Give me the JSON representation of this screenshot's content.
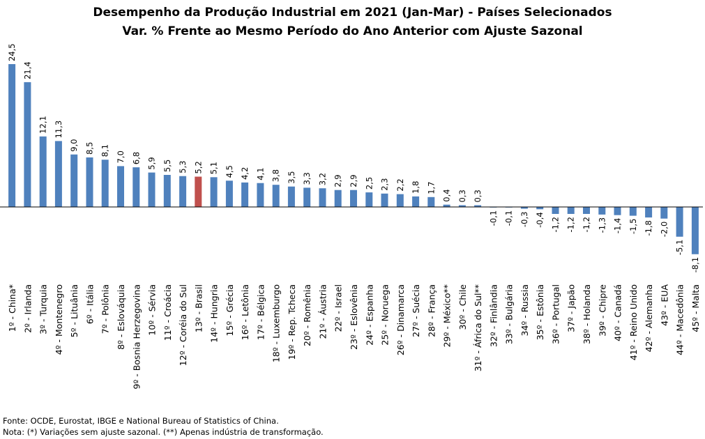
{
  "chart_data": {
    "type": "bar",
    "title": "Desempenho da Produção Industrial em 2021 (Jan-Mar) - Países Selecionados",
    "subtitle": "Var. % Frente ao Mesmo Período do Ano Anterior com Ajuste Sazonal",
    "xlabel": "",
    "ylabel": "",
    "ylim": [
      -8.1,
      24.5
    ],
    "grid": false,
    "legend": "none",
    "colors": {
      "default": "#4F81BD",
      "highlight": "#C0504D"
    },
    "highlight_category": "13º - Brasil",
    "categories": [
      "1º - China*",
      "2º - Irlanda",
      "3º - Turquia",
      "4º - Montenegro",
      "5º - Lituânia",
      "6º - Itália",
      "7º - Polônia",
      "8º - Eslováquia",
      "9º - Bosnia Herzegovina",
      "10º - Sérvia",
      "11º - Croácia",
      "12º - Coréia do Sul",
      "13º - Brasil",
      "14º - Hungria",
      "15º - Grécia",
      "16º - Letônia",
      "17º - Bélgica",
      "18º - Luxemburgo",
      "19º - Rep. Tcheca",
      "20º - Romênia",
      "21º - Áustria",
      "22º - Israel",
      "23º - Eslovênia",
      "24º - Espanha",
      "25º - Noruega",
      "26º - Dinamarca",
      "27º - Suécia",
      "28º - França",
      "29º - México**",
      "30º - Chile",
      "31º - África do Sul**",
      "32º - Finlândia",
      "33º - Bulgária",
      "34º - Russia",
      "35º - Estônia",
      "36º - Portugal",
      "37º - Japão",
      "38º - Holanda",
      "39º - Chipre",
      "40º - Canadá",
      "41º - Reino Unido",
      "42º - Alemanha",
      "43º - EUA",
      "44º - Macedônia",
      "45º - Malta"
    ],
    "values": [
      24.5,
      21.4,
      12.1,
      11.3,
      9.0,
      8.5,
      8.1,
      7.0,
      6.8,
      5.9,
      5.5,
      5.3,
      5.2,
      5.1,
      4.5,
      4.2,
      4.1,
      3.8,
      3.5,
      3.3,
      3.2,
      2.9,
      2.9,
      2.5,
      2.3,
      2.2,
      1.8,
      1.7,
      0.4,
      0.3,
      0.3,
      -0.1,
      -0.1,
      -0.3,
      -0.4,
      -1.2,
      -1.2,
      -1.2,
      -1.3,
      -1.4,
      -1.5,
      -1.8,
      -2.0,
      -5.1,
      -8.1
    ],
    "value_labels": [
      "24,5",
      "21,4",
      "12,1",
      "11,3",
      "9,0",
      "8,5",
      "8,1",
      "7,0",
      "6,8",
      "5,9",
      "5,5",
      "5,3",
      "5,2",
      "5,1",
      "4,5",
      "4,2",
      "4,1",
      "3,8",
      "3,5",
      "3,3",
      "3,2",
      "2,9",
      "2,9",
      "2,5",
      "2,3",
      "2,2",
      "1,8",
      "1,7",
      "0,4",
      "0,3",
      "0,3",
      "-0,1",
      "-0,1",
      "-0,3",
      "-0,4",
      "-1,2",
      "-1,2",
      "-1,2",
      "-1,3",
      "-1,4",
      "-1,5",
      "-1,8",
      "-2,0",
      "-5,1",
      "-8,1"
    ]
  },
  "footnotes": {
    "source": "Fonte: OCDE, Eurostat, IBGE e National Bureau of Statistics of China.",
    "note": "Nota: (*) Variações sem ajuste sazonal. (**) Apenas indústria de transformação."
  }
}
